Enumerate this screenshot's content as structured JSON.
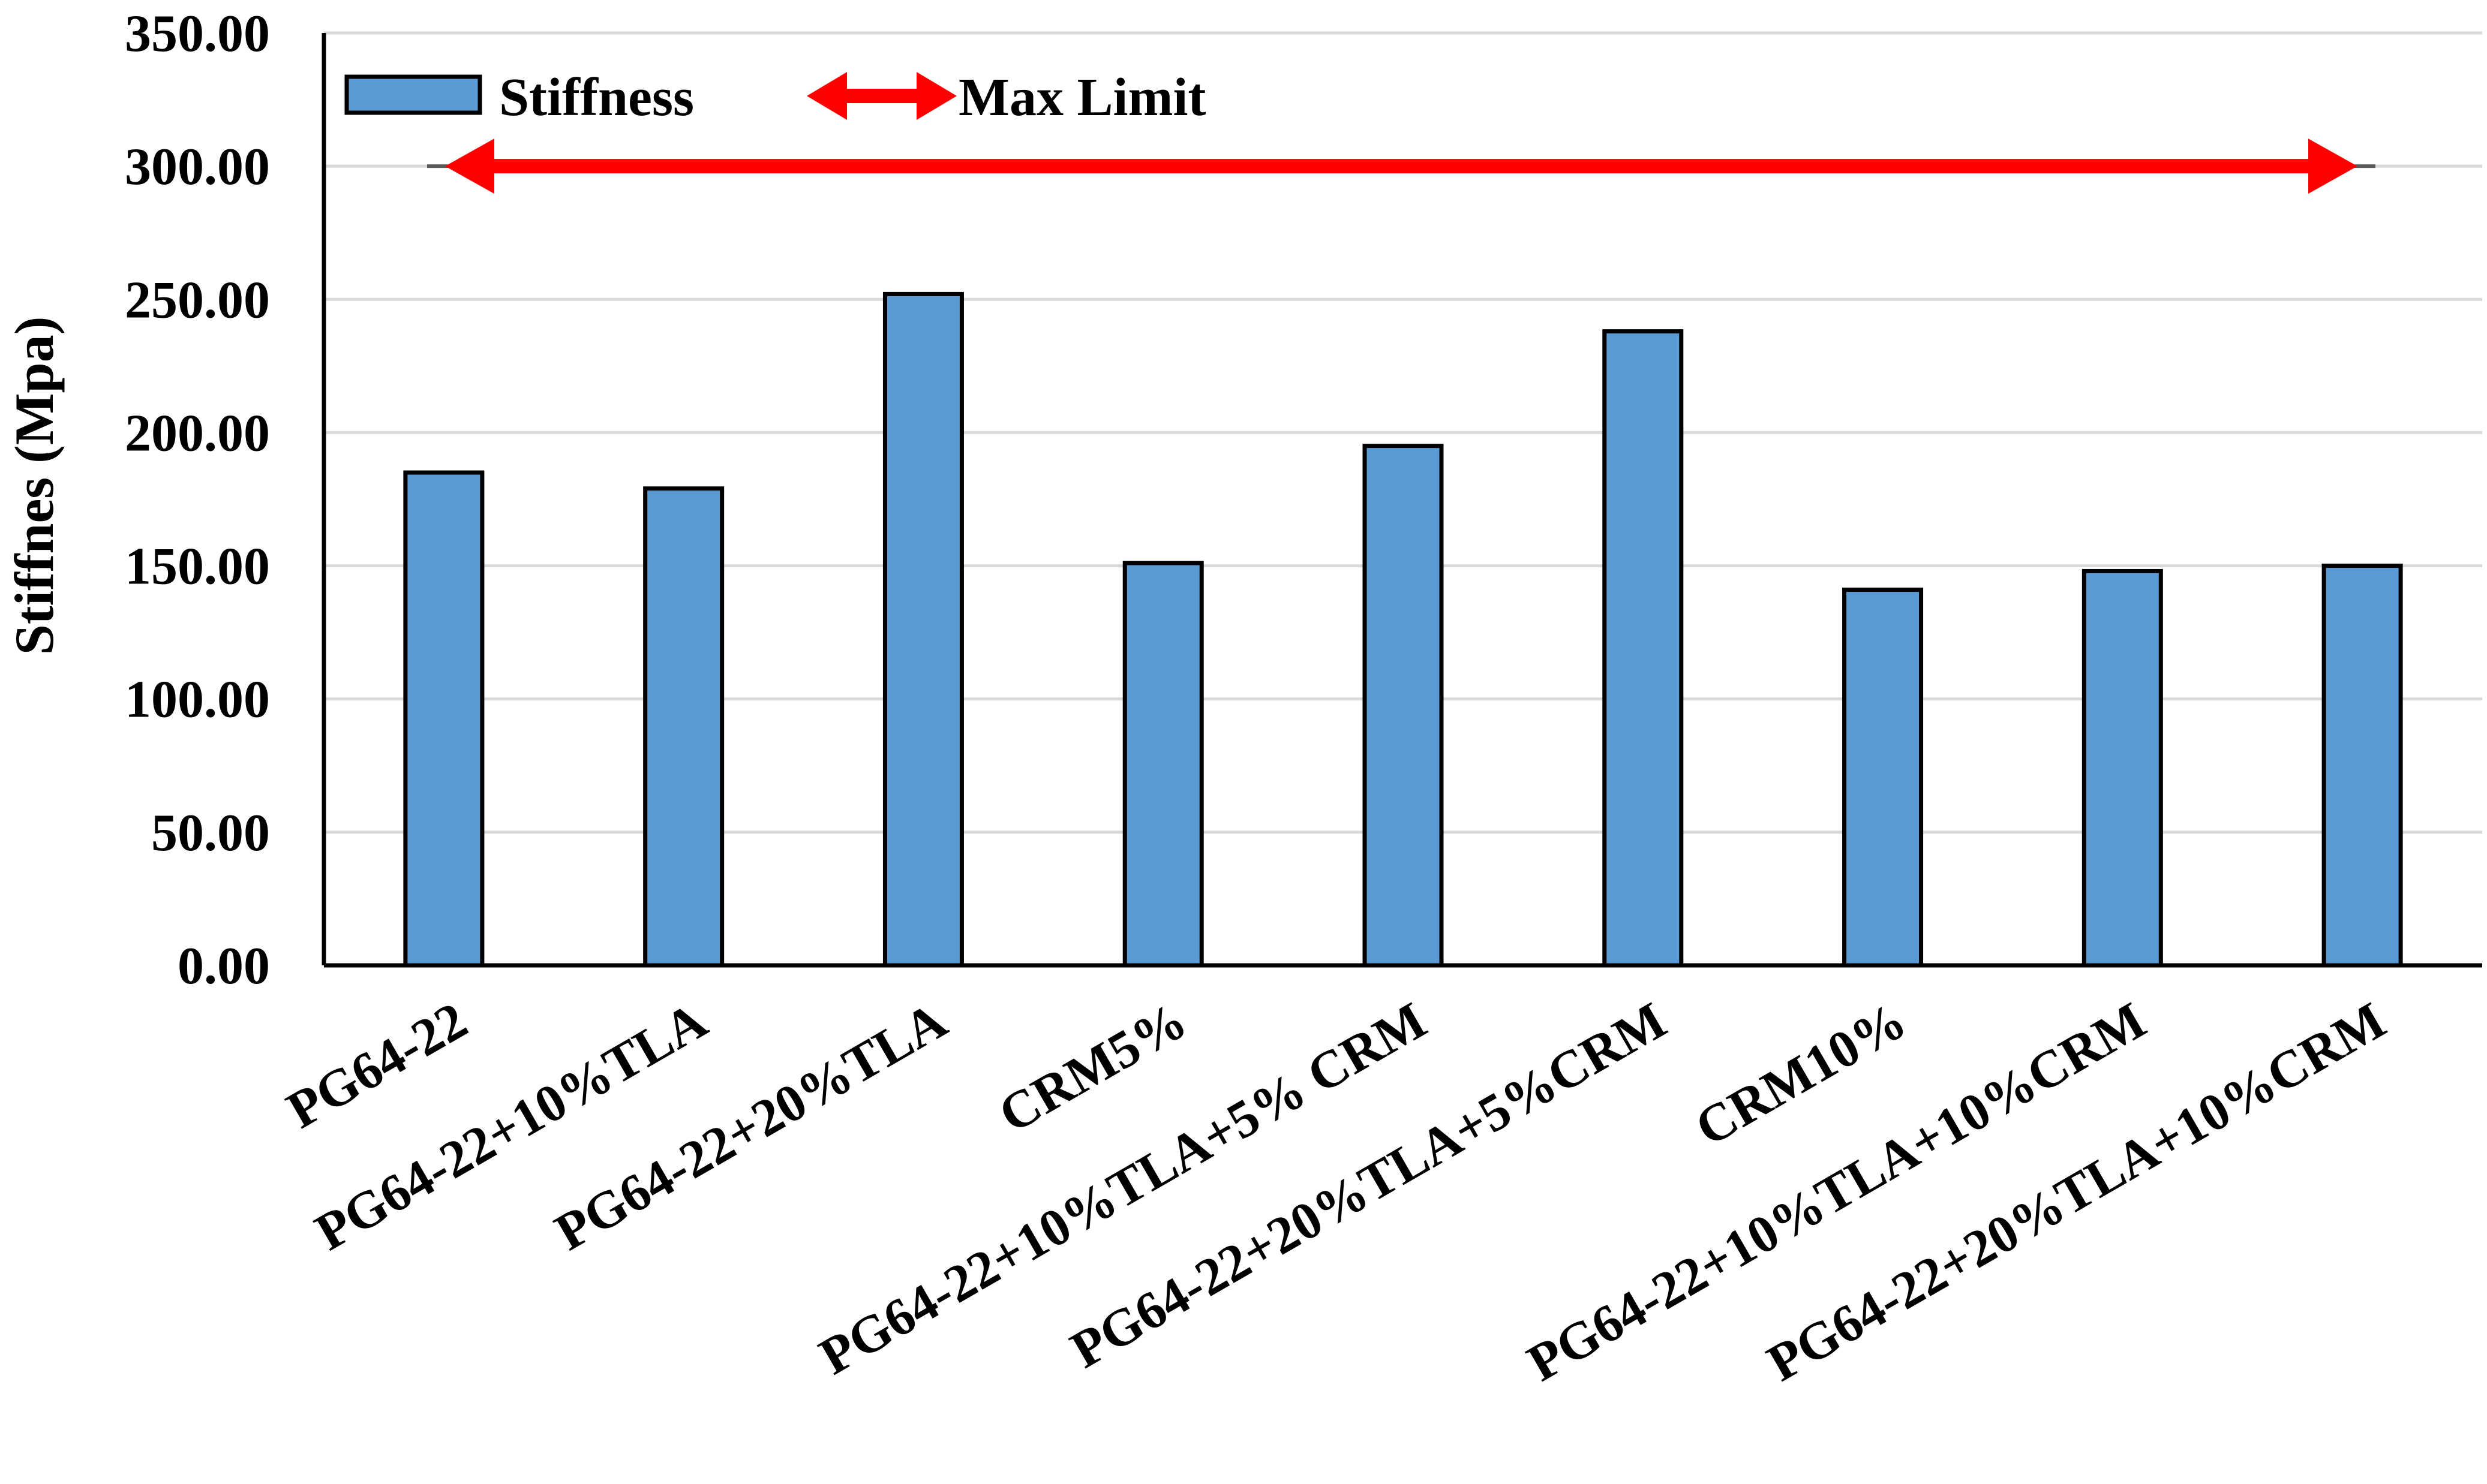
{
  "chart_data": {
    "type": "bar",
    "title": "",
    "xlabel": "",
    "ylabel": "Stiffnes (Mpa)",
    "ylim": [
      0,
      350
    ],
    "ytick_step": 50,
    "yticks": [
      "0.00",
      "50.00",
      "100.00",
      "150.00",
      "200.00",
      "250.00",
      "300.00",
      "350.00"
    ],
    "grid": true,
    "legend_position": "top-left",
    "categories": [
      "PG64-22",
      "PG64-22+10%TLA",
      "PG64-22+20%TLA",
      "CRM5%",
      "PG64-22+10%TLA+5% CRM",
      "PG64-22+20%TLA+5%CRM",
      "CRM10%",
      "PG64-22+10%TLA+10%CRM",
      "PG64-22+20%TLA+10%CRM"
    ],
    "series": [
      {
        "name": "Stiffness",
        "values": [
          185,
          179,
          252,
          151,
          195,
          238,
          141,
          148,
          150
        ],
        "color": "#5b9bd5"
      }
    ],
    "reference_line": {
      "name": "Max Limit",
      "value": 300,
      "color": "#ff0000"
    },
    "colors": {
      "bar": "#5b9bd5",
      "bar_border": "#000000",
      "grid": "#d9d9d9",
      "axis": "#000000",
      "limit": "#ff0000"
    }
  }
}
